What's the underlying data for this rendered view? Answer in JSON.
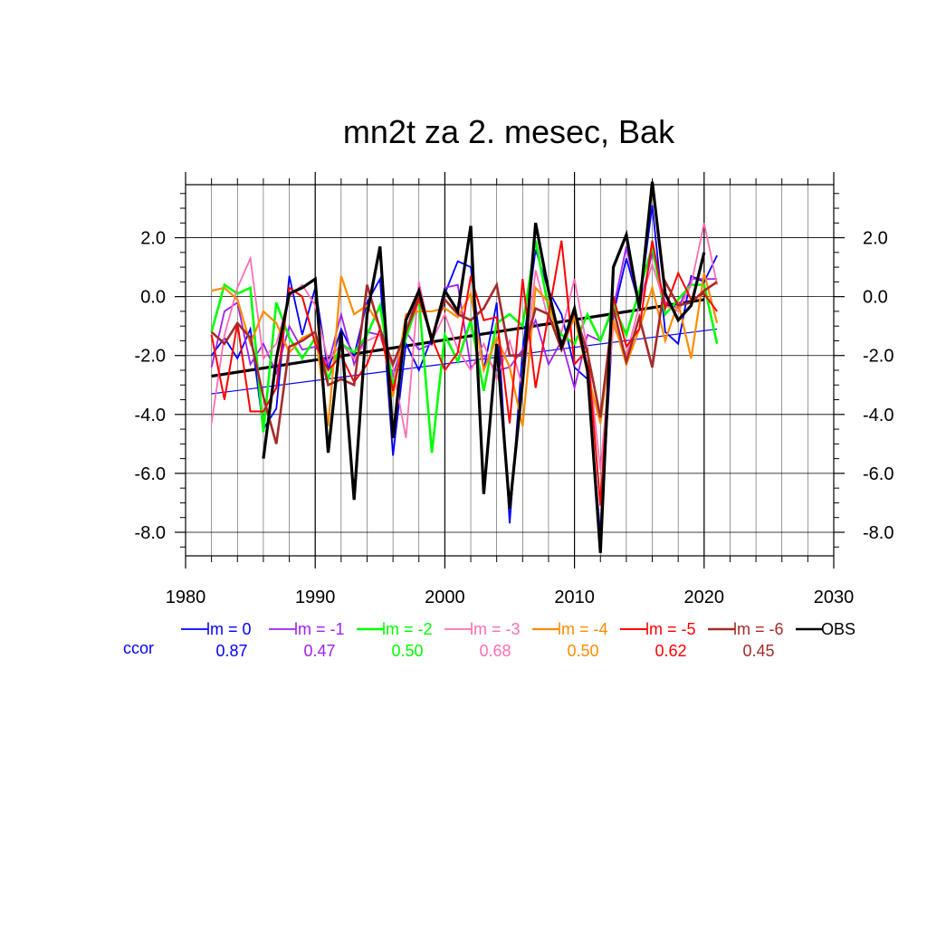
{
  "chart_data": {
    "type": "line",
    "title": "mn2t za 2. mesec, Bak",
    "xlabel": "",
    "ylabel": "",
    "xlim": [
      1980,
      2030
    ],
    "ylim": [
      -8.8,
      3.8
    ],
    "x_ticks": [
      "1980",
      "1990",
      "2000",
      "2010",
      "2020",
      "2030"
    ],
    "y_ticks": [
      "2.0",
      "0.0",
      "-2.0",
      "-4.0",
      "-6.0",
      "-8.0"
    ],
    "x_tick_values": [
      1980,
      1990,
      2000,
      2010,
      2020,
      2030
    ],
    "y_tick_values": [
      2,
      0,
      -2,
      -4,
      -6,
      -8
    ],
    "grid": true,
    "legend_position": "bottom",
    "ccor_label": "ccor",
    "ccor_color": "#0000ff",
    "series": [
      {
        "name": "lm = 0",
        "color": "#0000ff",
        "ccor": "0.87",
        "width": 1.8,
        "x": [
          1982,
          1983,
          1984,
          1985,
          1986,
          1987,
          1988,
          1989,
          1990,
          1991,
          1992,
          1993,
          1994,
          1995,
          1996,
          1997,
          1998,
          1999,
          2000,
          2001,
          2002,
          2003,
          2004,
          2005,
          2006,
          2007,
          2008,
          2009,
          2010,
          2011,
          2012,
          2013,
          2014,
          2015,
          2016,
          2017,
          2018,
          2019,
          2020,
          2021
        ],
        "values": [
          -2.0,
          -1.4,
          -2.1,
          -1.1,
          -4.5,
          -3.8,
          0.7,
          -1.3,
          0.3,
          -2.5,
          -1.1,
          -2.0,
          -0.2,
          0.6,
          -5.4,
          -1.6,
          -2.5,
          -1.4,
          0.1,
          1.2,
          1.0,
          -2.5,
          -0.2,
          -7.7,
          -1.8,
          1.6,
          0.2,
          -0.6,
          -2.4,
          -2.8,
          -8.1,
          -0.6,
          1.3,
          -0.3,
          3.1,
          -1.2,
          -1.6,
          0.7,
          0.5,
          1.4
        ]
      },
      {
        "name": "lm = -1",
        "color": "#a020f0",
        "ccor": "0.47",
        "width": 1.8,
        "x": [
          1982,
          1983,
          1984,
          1985,
          1986,
          1987,
          1988,
          1989,
          1990,
          1991,
          1992,
          1993,
          1994,
          1995,
          1996,
          1997,
          1998,
          1999,
          2000,
          2001,
          2002,
          2003,
          2004,
          2005,
          2006,
          2007,
          2008,
          2009,
          2010,
          2011,
          2012,
          2013,
          2014,
          2015,
          2016,
          2017,
          2018,
          2019,
          2020,
          2021
        ],
        "values": [
          -2.4,
          -0.5,
          -0.2,
          -2.3,
          -1.6,
          -2.6,
          -1.0,
          -1.8,
          -1.7,
          -2.3,
          -0.6,
          -2.3,
          -1.2,
          -1.3,
          -2.7,
          -1.2,
          -1.8,
          -1.6,
          0.3,
          0.4,
          -2.4,
          -2.0,
          -2.5,
          -2.4,
          -1.8,
          -0.8,
          -2.3,
          -1.5,
          -3.1,
          -1.3,
          -1.5,
          -0.4,
          1.7,
          -0.4,
          1.5,
          -0.2,
          -0.4,
          0.6,
          0.6,
          0.6
        ]
      },
      {
        "name": "lm = -2",
        "color": "#00ff00",
        "ccor": "0.50",
        "width": 2.6,
        "x": [
          1982,
          1983,
          1984,
          1985,
          1986,
          1987,
          1988,
          1989,
          1990,
          1991,
          1992,
          1993,
          1994,
          1995,
          1996,
          1997,
          1998,
          1999,
          2000,
          2001,
          2002,
          2003,
          2004,
          2005,
          2006,
          2007,
          2008,
          2009,
          2010,
          2011,
          2012,
          2013,
          2014,
          2015,
          2016,
          2017,
          2018,
          2019,
          2020,
          2021
        ],
        "values": [
          -1.2,
          0.4,
          0.1,
          0.3,
          -4.6,
          -0.2,
          -1.4,
          -2.1,
          -1.4,
          -2.8,
          -1.6,
          -1.9,
          -1.3,
          -0.3,
          -3.0,
          -1.4,
          -0.1,
          -5.3,
          -1.3,
          -2.2,
          -0.8,
          -3.2,
          -0.9,
          -0.6,
          -1.0,
          1.9,
          -0.4,
          -1.3,
          -1.6,
          -0.6,
          -1.5,
          -0.3,
          -1.3,
          0.2,
          1.7,
          -0.6,
          -0.1,
          0.4,
          0.4,
          -1.6
        ]
      },
      {
        "name": "lm = -3",
        "color": "#ff6eb4",
        "ccor": "0.68",
        "width": 1.8,
        "x": [
          1982,
          1983,
          1984,
          1985,
          1986,
          1987,
          1988,
          1989,
          1990,
          1991,
          1992,
          1993,
          1994,
          1995,
          1996,
          1997,
          1998,
          1999,
          2000,
          2001,
          2002,
          2003,
          2004,
          2005,
          2006,
          2007,
          2008,
          2009,
          2010,
          2011,
          2012,
          2013,
          2014,
          2015,
          2016,
          2017,
          2018,
          2019,
          2020,
          2021
        ],
        "values": [
          -4.3,
          -1.3,
          0.3,
          1.3,
          -2.1,
          -1.6,
          0.0,
          0.4,
          -0.3,
          -2.2,
          -1.6,
          -2.1,
          -1.5,
          -1.3,
          -2.4,
          -4.8,
          0.5,
          -1.5,
          -0.6,
          -1.8,
          -2.5,
          -1.6,
          -2.8,
          -1.5,
          -3.1,
          0.9,
          -0.8,
          -1.2,
          0.6,
          -1.8,
          -5.9,
          -1.0,
          -2.0,
          -0.3,
          1.1,
          -0.3,
          -0.5,
          0.4,
          2.5,
          0.4
        ]
      },
      {
        "name": "lm = -4",
        "color": "#ff8c00",
        "ccor": "0.50",
        "width": 2.2,
        "x": [
          1982,
          1983,
          1984,
          1985,
          1986,
          1987,
          1988,
          1989,
          1990,
          1991,
          1992,
          1993,
          1994,
          1995,
          1996,
          1997,
          1998,
          1999,
          2000,
          2001,
          2002,
          2003,
          2004,
          2005,
          2006,
          2007,
          2008,
          2009,
          2010,
          2011,
          2012,
          2013,
          2014,
          2015,
          2016,
          2017,
          2018,
          2019,
          2020,
          2021
        ],
        "values": [
          0.2,
          0.3,
          -0.1,
          -1.6,
          -0.5,
          -0.9,
          -1.9,
          -1.4,
          -1.2,
          -4.4,
          0.7,
          -0.6,
          -0.3,
          -1.0,
          -3.4,
          -0.6,
          -0.5,
          -0.5,
          -0.4,
          -0.7,
          0.1,
          -2.5,
          -1.4,
          -2.4,
          -4.4,
          0.3,
          -0.2,
          -1.8,
          -0.7,
          -2.6,
          -4.3,
          -0.8,
          -2.3,
          -1.1,
          0.3,
          -1.5,
          -0.2,
          -2.1,
          0.8,
          -0.9
        ]
      },
      {
        "name": "lm = -5",
        "color": "#ff0000",
        "ccor": "0.62",
        "width": 2.0,
        "x": [
          1982,
          1983,
          1984,
          1985,
          1986,
          1987,
          1988,
          1989,
          1990,
          1991,
          1992,
          1993,
          1994,
          1995,
          1996,
          1997,
          1998,
          1999,
          2000,
          2001,
          2002,
          2003,
          2004,
          2005,
          2006,
          2007,
          2008,
          2009,
          2010,
          2011,
          2012,
          2013,
          2014,
          2015,
          2016,
          2017,
          2018,
          2019,
          2020,
          2021
        ],
        "values": [
          -1.3,
          -3.5,
          -0.9,
          -3.9,
          -3.9,
          -3.1,
          0.3,
          0.0,
          -1.6,
          -2.5,
          -2.0,
          -2.9,
          -2.3,
          -1.1,
          -3.2,
          -1.2,
          -0.1,
          -1.4,
          -2.5,
          -1.9,
          0.7,
          -0.8,
          -0.7,
          -4.3,
          0.6,
          -3.1,
          -0.6,
          1.9,
          -2.3,
          -1.8,
          -7.1,
          0.0,
          -1.7,
          -1.1,
          1.9,
          -0.4,
          0.8,
          -0.1,
          0.1,
          -0.5
        ]
      },
      {
        "name": "lm = -6",
        "color": "#a52a2a",
        "ccor": "0.45",
        "width": 2.6,
        "x": [
          1982,
          1983,
          1984,
          1985,
          1986,
          1987,
          1988,
          1989,
          1990,
          1991,
          1992,
          1993,
          1994,
          1995,
          1996,
          1997,
          1998,
          1999,
          2000,
          2001,
          2002,
          2003,
          2004,
          2005,
          2006,
          2007,
          2008,
          2009,
          2010,
          2011,
          2012,
          2013,
          2014,
          2015,
          2016,
          2017,
          2018,
          2019,
          2020,
          2021
        ],
        "values": [
          -1.2,
          -1.6,
          -0.9,
          -1.4,
          -3.4,
          -5.0,
          -1.7,
          -1.5,
          -1.2,
          -3.0,
          -2.8,
          -3.0,
          0.4,
          -1.1,
          -2.3,
          -1.2,
          0.1,
          -1.4,
          -0.1,
          -0.6,
          -0.8,
          -0.4,
          0.4,
          -2.0,
          -2.0,
          -0.4,
          -0.6,
          -1.8,
          -0.5,
          -1.9,
          -4.1,
          -0.4,
          -2.2,
          -0.7,
          -2.4,
          0.5,
          -0.3,
          -0.2,
          0.2,
          0.5
        ]
      },
      {
        "name": "OBS",
        "color": "#000000",
        "ccor": "",
        "width": 3.2,
        "x": [
          1982,
          1983,
          1984,
          1985,
          1986,
          1987,
          1988,
          1989,
          1990,
          1991,
          1992,
          1993,
          1994,
          1995,
          1996,
          1997,
          1998,
          1999,
          2000,
          2001,
          2002,
          2003,
          2004,
          2005,
          2006,
          2007,
          2008,
          2009,
          2010,
          2011,
          2012,
          2013,
          2014,
          2015,
          2016,
          2017,
          2018,
          2019,
          2020,
          2021
        ],
        "values": [
          null,
          null,
          null,
          null,
          -5.5,
          -2.1,
          0.1,
          0.3,
          0.6,
          -5.3,
          -1.2,
          -6.9,
          -0.6,
          1.7,
          -4.8,
          -0.8,
          0.2,
          -1.5,
          0.2,
          -0.5,
          2.4,
          -6.7,
          -1.6,
          -7.2,
          -2.9,
          2.5,
          0.2,
          -1.7,
          -0.4,
          -2.5,
          -8.7,
          1.0,
          2.1,
          -0.4,
          3.9,
          0.1,
          -0.8,
          -0.3,
          1.5,
          null
        ]
      }
    ],
    "trend_lines": [
      {
        "name": "lm = 0 trend",
        "color": "#0000ff",
        "width": 1.2,
        "x": [
          1982,
          2021
        ],
        "values": [
          -3.3,
          -1.1
        ]
      },
      {
        "name": "OBS trend",
        "color": "#000000",
        "width": 3.2,
        "x": [
          1982,
          2020
        ],
        "values": [
          -2.7,
          -0.1
        ]
      }
    ]
  }
}
